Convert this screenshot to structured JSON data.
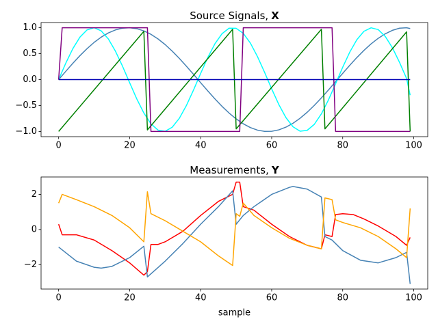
{
  "chart_data": [
    {
      "type": "line",
      "title": "Source Signals,",
      "title_symbol": "X",
      "xlim": [
        -4.95,
        103.95
      ],
      "ylim": [
        -1.1,
        1.1
      ],
      "xticks": [
        0,
        20,
        40,
        60,
        80,
        100
      ],
      "yticks": [
        {
          "value": -1,
          "label": "−1.0"
        },
        {
          "value": -0.5,
          "label": "−0.5"
        },
        {
          "value": 0,
          "label": "0.0"
        },
        {
          "value": 0.5,
          "label": "0.5"
        },
        {
          "value": 1,
          "label": "1.0"
        }
      ],
      "series": [
        {
          "color": "#4682b4",
          "x": [
            0,
            2,
            4,
            6,
            8,
            10,
            12,
            14,
            16,
            18,
            20,
            22,
            24,
            26,
            28,
            30,
            32,
            34,
            36,
            38,
            40,
            42,
            44,
            46,
            48,
            50,
            52,
            54,
            56,
            58,
            60,
            62,
            64,
            66,
            68,
            70,
            72,
            74,
            76,
            78,
            80,
            82,
            84,
            86,
            88,
            90,
            92,
            94,
            96,
            98,
            99
          ],
          "values": [
            0,
            0.159,
            0.315,
            0.462,
            0.597,
            0.718,
            0.819,
            0.9,
            0.958,
            0.992,
            1,
            0.982,
            0.939,
            0.873,
            0.784,
            0.675,
            0.548,
            0.408,
            0.257,
            0.1,
            -0.06,
            -0.218,
            -0.371,
            -0.514,
            -0.644,
            -0.758,
            -0.852,
            -0.925,
            -0.974,
            -0.998,
            -0.996,
            -0.969,
            -0.917,
            -0.842,
            -0.745,
            -0.629,
            -0.497,
            -0.352,
            -0.199,
            -0.04,
            0.12,
            0.277,
            0.426,
            0.564,
            0.689,
            0.796,
            0.884,
            0.95,
            0.991,
            1,
            0.985
          ]
        },
        {
          "color": "#00ffff",
          "x": [
            0,
            2,
            4,
            6,
            8,
            10,
            12,
            14,
            16,
            18,
            20,
            22,
            24,
            26,
            28,
            30,
            32,
            34,
            36,
            38,
            40,
            42,
            44,
            46,
            48,
            50,
            52,
            54,
            56,
            58,
            60,
            62,
            64,
            66,
            68,
            70,
            72,
            74,
            76,
            78,
            80,
            82,
            84,
            86,
            88,
            90,
            92,
            94,
            96,
            98,
            99
          ],
          "values": [
            0,
            0.315,
            0.597,
            0.819,
            0.958,
            1,
            0.939,
            0.784,
            0.548,
            0.257,
            -0.06,
            -0.371,
            -0.644,
            -0.852,
            -0.974,
            -0.996,
            -0.917,
            -0.745,
            -0.497,
            -0.199,
            0.12,
            0.426,
            0.689,
            0.884,
            0.991,
            0.989,
            0.892,
            0.704,
            0.444,
            0.14,
            -0.179,
            -0.479,
            -0.731,
            -0.909,
            -0.994,
            -0.978,
            -0.863,
            -0.66,
            -0.39,
            -0.08,
            0.238,
            0.531,
            0.771,
            0.932,
            0.999,
            0.964,
            0.831,
            0.614,
            0.334,
            0.021,
            -0.3
          ]
        },
        {
          "color": "#008000",
          "x": [
            0,
            24,
            25,
            49,
            50,
            74,
            75,
            98,
            99
          ],
          "values": [
            -1,
            0.93,
            -0.97,
            0.97,
            -0.95,
            0.97,
            -0.95,
            0.92,
            -1
          ]
        },
        {
          "color": "#800080",
          "x": [
            0,
            1,
            25,
            26,
            51,
            52,
            77,
            78,
            99
          ],
          "values": [
            0,
            1,
            1,
            -1,
            -1,
            1,
            1,
            -1,
            -1
          ]
        },
        {
          "color": "#0000b4",
          "x": [
            0,
            99
          ],
          "values": [
            0,
            0
          ]
        }
      ]
    },
    {
      "type": "line",
      "title": "Measurements,",
      "title_symbol": "Y",
      "xlabel": "sample",
      "xlim": [
        -4.95,
        103.95
      ],
      "ylim": [
        -3.39,
        2.99
      ],
      "xticks": [
        0,
        20,
        40,
        60,
        80,
        100
      ],
      "yticks": [
        {
          "value": -2,
          "label": "−2"
        },
        0,
        2
      ],
      "series": [
        {
          "color": "#ff0000",
          "x": [
            0,
            1,
            5,
            10,
            15,
            20,
            24,
            25,
            26,
            28,
            30,
            35,
            40,
            45,
            49,
            50,
            51,
            52,
            55,
            60,
            65,
            70,
            74,
            75,
            77,
            78,
            80,
            83,
            86,
            90,
            95,
            98,
            99
          ],
          "values": [
            0.3,
            -0.3,
            -0.3,
            -0.6,
            -1.2,
            -1.9,
            -2.6,
            -2.4,
            -0.85,
            -0.85,
            -0.7,
            -0.1,
            0.8,
            1.6,
            2,
            2.7,
            2.7,
            1.3,
            1.1,
            0.3,
            -0.4,
            -0.9,
            -1.1,
            -0.3,
            -0.4,
            0.85,
            0.9,
            0.85,
            0.6,
            0.2,
            -0.4,
            -0.9,
            -0.45
          ]
        },
        {
          "color": "#4682b4",
          "x": [
            0,
            5,
            10,
            12,
            15,
            20,
            24,
            25,
            30,
            35,
            40,
            45,
            49,
            50,
            52,
            55,
            60,
            65,
            66,
            70,
            74,
            75,
            77,
            78,
            80,
            85,
            90,
            95,
            98,
            99
          ],
          "values": [
            -1,
            -1.8,
            -2.15,
            -2.2,
            -2.1,
            -1.6,
            -0.95,
            -2.7,
            -1.8,
            -0.8,
            0.3,
            1.3,
            2.2,
            0.3,
            0.8,
            1.3,
            2,
            2.4,
            2.45,
            2.3,
            1.85,
            -0.4,
            -0.6,
            -0.8,
            -1.2,
            -1.75,
            -1.9,
            -1.6,
            -1.3,
            -3.1
          ]
        },
        {
          "color": "#ffa500",
          "x": [
            0,
            1,
            5,
            10,
            15,
            20,
            24,
            25,
            26,
            30,
            35,
            40,
            45,
            49,
            50,
            51,
            52,
            55,
            60,
            65,
            70,
            74,
            75,
            77,
            78,
            80,
            85,
            90,
            95,
            98,
            99
          ],
          "values": [
            1.5,
            2,
            1.7,
            1.3,
            0.8,
            0.1,
            -0.7,
            2.15,
            0.9,
            0.5,
            -0.1,
            -0.7,
            -1.5,
            -2.05,
            0.9,
            0.75,
            1.5,
            0.8,
            0.1,
            -0.5,
            -0.9,
            -1.1,
            1.8,
            1.7,
            0.55,
            0.4,
            0.1,
            -0.4,
            -1.1,
            -1.6,
            1.2
          ]
        }
      ]
    }
  ]
}
